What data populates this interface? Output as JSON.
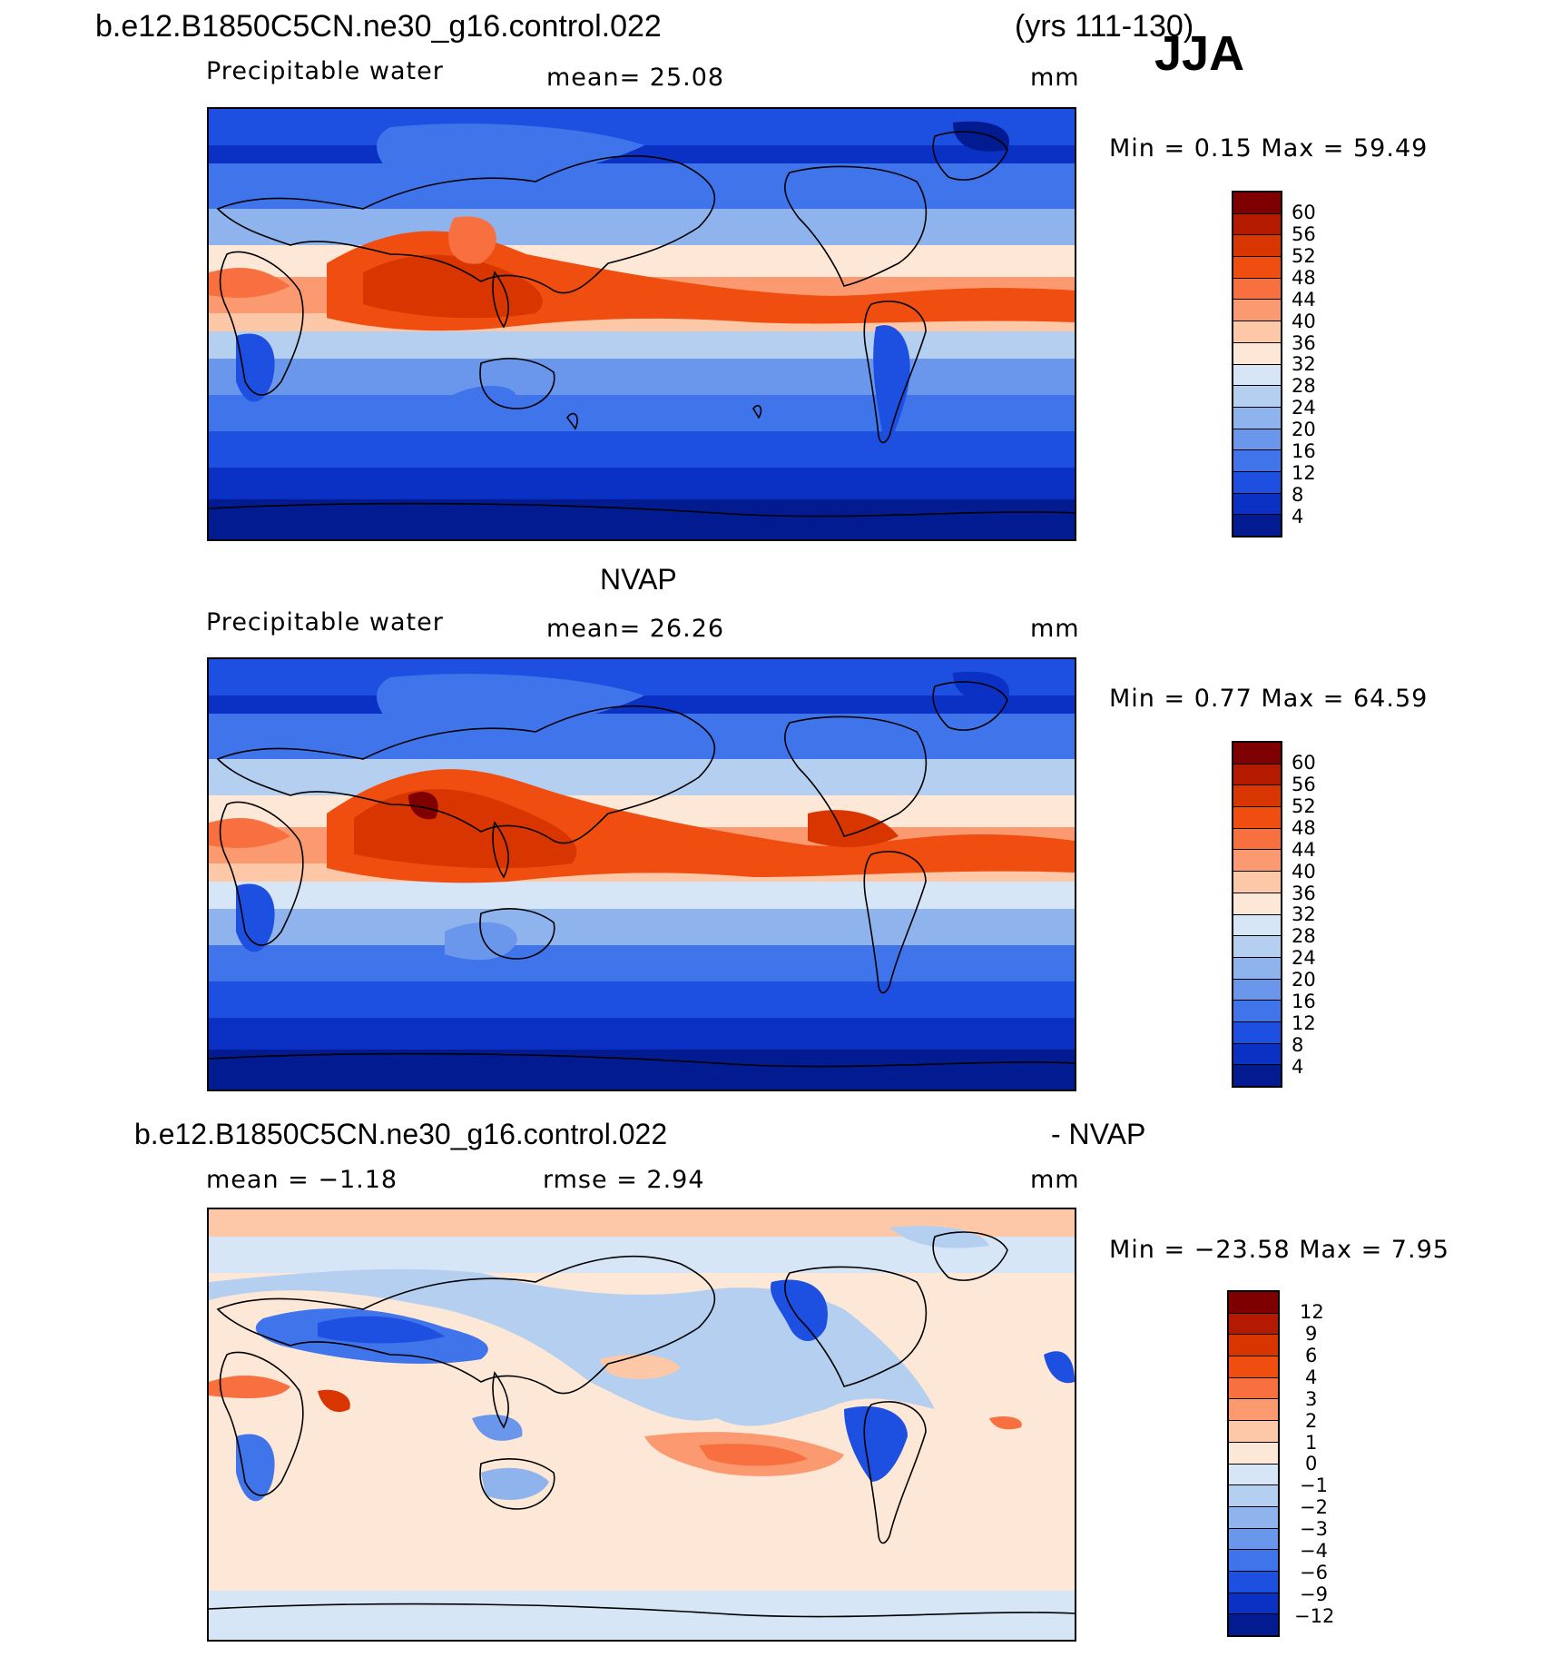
{
  "header": {
    "case_name": "b.e12.B1850C5CN.ne30_g16.control.022",
    "years": "(yrs 111-130)",
    "season": "JJA"
  },
  "panels": [
    {
      "id": "model",
      "variable": "Precipitable water",
      "mean_label": "mean=   25.08",
      "units": "mm",
      "minmax_label": "Min  =     0.15  Max  =    59.49",
      "colorbar": {
        "labels": [
          "60",
          "56",
          "52",
          "48",
          "44",
          "40",
          "36",
          "32",
          "28",
          "24",
          "20",
          "16",
          "12",
          "8",
          "4"
        ],
        "colors": [
          "#7f0000",
          "#b31a00",
          "#d93500",
          "#f04e10",
          "#f87040",
          "#fb9a70",
          "#fdc8a8",
          "#fde8d8",
          "#d7e6f7",
          "#b4cff0",
          "#8fb3ed",
          "#6a96eb",
          "#3f74ea",
          "#1d4fe0",
          "#0b30c4",
          "#021b90"
        ]
      },
      "map_min": 0.15,
      "map_max": 59.49
    },
    {
      "id": "obs",
      "title": "NVAP",
      "variable": "Precipitable water",
      "mean_label": "mean=   26.26",
      "units": "mm",
      "minmax_label": "Min  =     0.77  Max  =    64.59",
      "colorbar": {
        "labels": [
          "60",
          "56",
          "52",
          "48",
          "44",
          "40",
          "36",
          "32",
          "28",
          "24",
          "20",
          "16",
          "12",
          "8",
          "4"
        ],
        "colors": [
          "#7f0000",
          "#b31a00",
          "#d93500",
          "#f04e10",
          "#f87040",
          "#fb9a70",
          "#fdc8a8",
          "#fde8d8",
          "#d7e6f7",
          "#b4cff0",
          "#8fb3ed",
          "#6a96eb",
          "#3f74ea",
          "#1d4fe0",
          "#0b30c4",
          "#021b90"
        ]
      },
      "map_min": 0.77,
      "map_max": 64.59
    },
    {
      "id": "diff",
      "title_left": "b.e12.B1850C5CN.ne30_g16.control.022",
      "title_right": "- NVAP",
      "mean_label": "mean  =   −1.18",
      "rmse_label": "rmse  =     2.94",
      "units": "mm",
      "minmax_label": "Min  =  −23.58  Max  =     7.95",
      "colorbar": {
        "labels": [
          "12",
          "9",
          "6",
          "4",
          "3",
          "2",
          "1",
          "0",
          "−1",
          "−2",
          "−3",
          "−4",
          "−6",
          "−9",
          "−12"
        ],
        "colors": [
          "#7f0000",
          "#b31a00",
          "#d93500",
          "#f04e10",
          "#f87040",
          "#fb9a70",
          "#fdc8a8",
          "#fde8d8",
          "#d7e6f7",
          "#b4cff0",
          "#8fb3ed",
          "#6a96eb",
          "#3f74ea",
          "#1d4fe0",
          "#0b30c4",
          "#021b90"
        ]
      },
      "map_min": -23.58,
      "map_max": 7.95
    }
  ]
}
